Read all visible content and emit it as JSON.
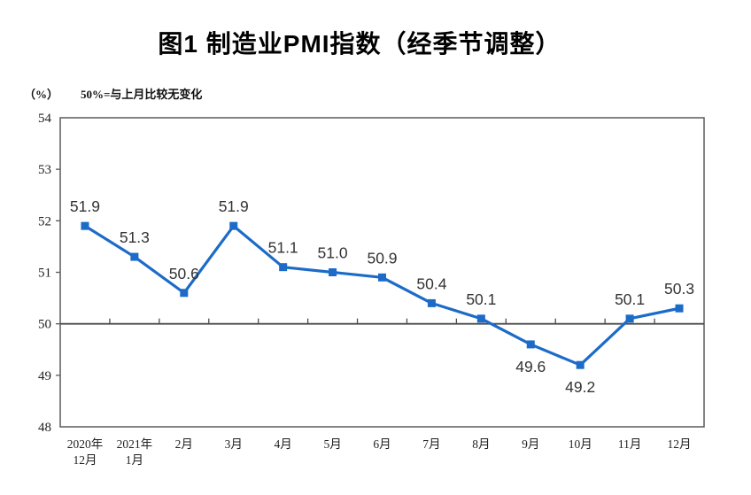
{
  "header": {
    "title": "图1 制造业PMI指数（经季节调整）"
  },
  "axis_notes": {
    "unit": "（%）",
    "note": "50%=与上月比较无变化"
  },
  "chart_data": {
    "type": "line",
    "title": "图1 制造业PMI指数（经季节调整）",
    "unit_label": "（%）",
    "note": "50%=与上月比较无变化",
    "categories": [
      "2020年\n12月",
      "2021年\n1月",
      "2月",
      "3月",
      "4月",
      "5月",
      "6月",
      "7月",
      "8月",
      "9月",
      "10月",
      "11月",
      "12月"
    ],
    "series": [
      {
        "name": "制造业PMI",
        "values": [
          51.9,
          51.3,
          50.6,
          51.9,
          51.1,
          51.0,
          50.9,
          50.4,
          50.1,
          49.6,
          49.2,
          50.1,
          50.3
        ]
      }
    ],
    "ylim": [
      48,
      54
    ],
    "y_ticks": [
      48,
      49,
      50,
      51,
      52,
      53,
      54
    ],
    "baseline_value": 50,
    "grid": "off",
    "legend": "none",
    "marker": "square",
    "label_rule": "above if value >= 50, below if value < 50",
    "colors": {
      "line": "#1c6bc8",
      "frame": "#5a5a5a",
      "baseline": "#4c4c4c",
      "data_label_text": "#333333",
      "axis_text": "#1f1f1f",
      "background": "#ffffff"
    }
  }
}
